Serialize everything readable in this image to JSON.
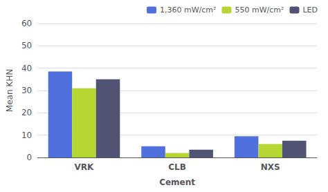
{
  "chart_data": {
    "type": "bar",
    "xlabel": "Cement",
    "ylabel": "Mean KHN",
    "categories": [
      "VRK",
      "CLB",
      "NXS"
    ],
    "series": [
      {
        "name": "1,360 mW/cm²",
        "values": [
          38.5,
          5.0,
          9.5
        ]
      },
      {
        "name": "550 mW/cm²",
        "values": [
          31.0,
          2.0,
          6.0
        ]
      },
      {
        "name": "LED",
        "values": [
          35.0,
          3.5,
          7.5
        ]
      }
    ],
    "ylim": [
      0,
      60
    ],
    "yticks": [
      0,
      10,
      20,
      30,
      40,
      50,
      60
    ],
    "grid": true,
    "legend": "upper right"
  }
}
